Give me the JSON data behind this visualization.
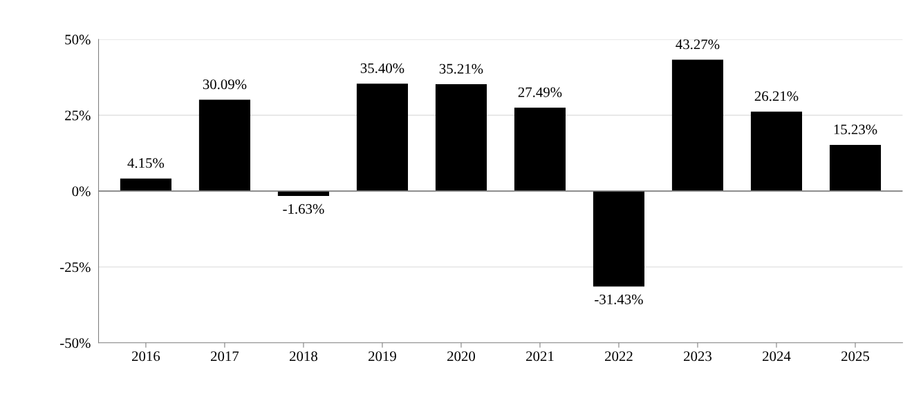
{
  "chart_data": {
    "type": "bar",
    "categories": [
      "2016",
      "2017",
      "2018",
      "2019",
      "2020",
      "2021",
      "2022",
      "2023",
      "2024",
      "2025"
    ],
    "values": [
      4.15,
      30.09,
      -1.63,
      35.4,
      35.21,
      27.49,
      -31.43,
      43.27,
      26.21,
      15.23
    ],
    "value_labels": [
      "4.15%",
      "30.09%",
      "-1.63%",
      "35.40%",
      "35.21%",
      "27.49%",
      "-31.43%",
      "43.27%",
      "26.21%",
      "15.23%"
    ],
    "color": "#000000",
    "ylim": [
      -50,
      50
    ],
    "yticks": [
      {
        "value": -50,
        "label": "-50%"
      },
      {
        "value": -25,
        "label": "-25%"
      },
      {
        "value": 0,
        "label": "0%"
      },
      {
        "value": 25,
        "label": "25%"
      },
      {
        "value": 50,
        "label": "50%"
      }
    ],
    "grid": "y",
    "ref_lines": [
      {
        "axis": "y",
        "value": 0,
        "color": "#808080"
      }
    ],
    "legend": false
  }
}
